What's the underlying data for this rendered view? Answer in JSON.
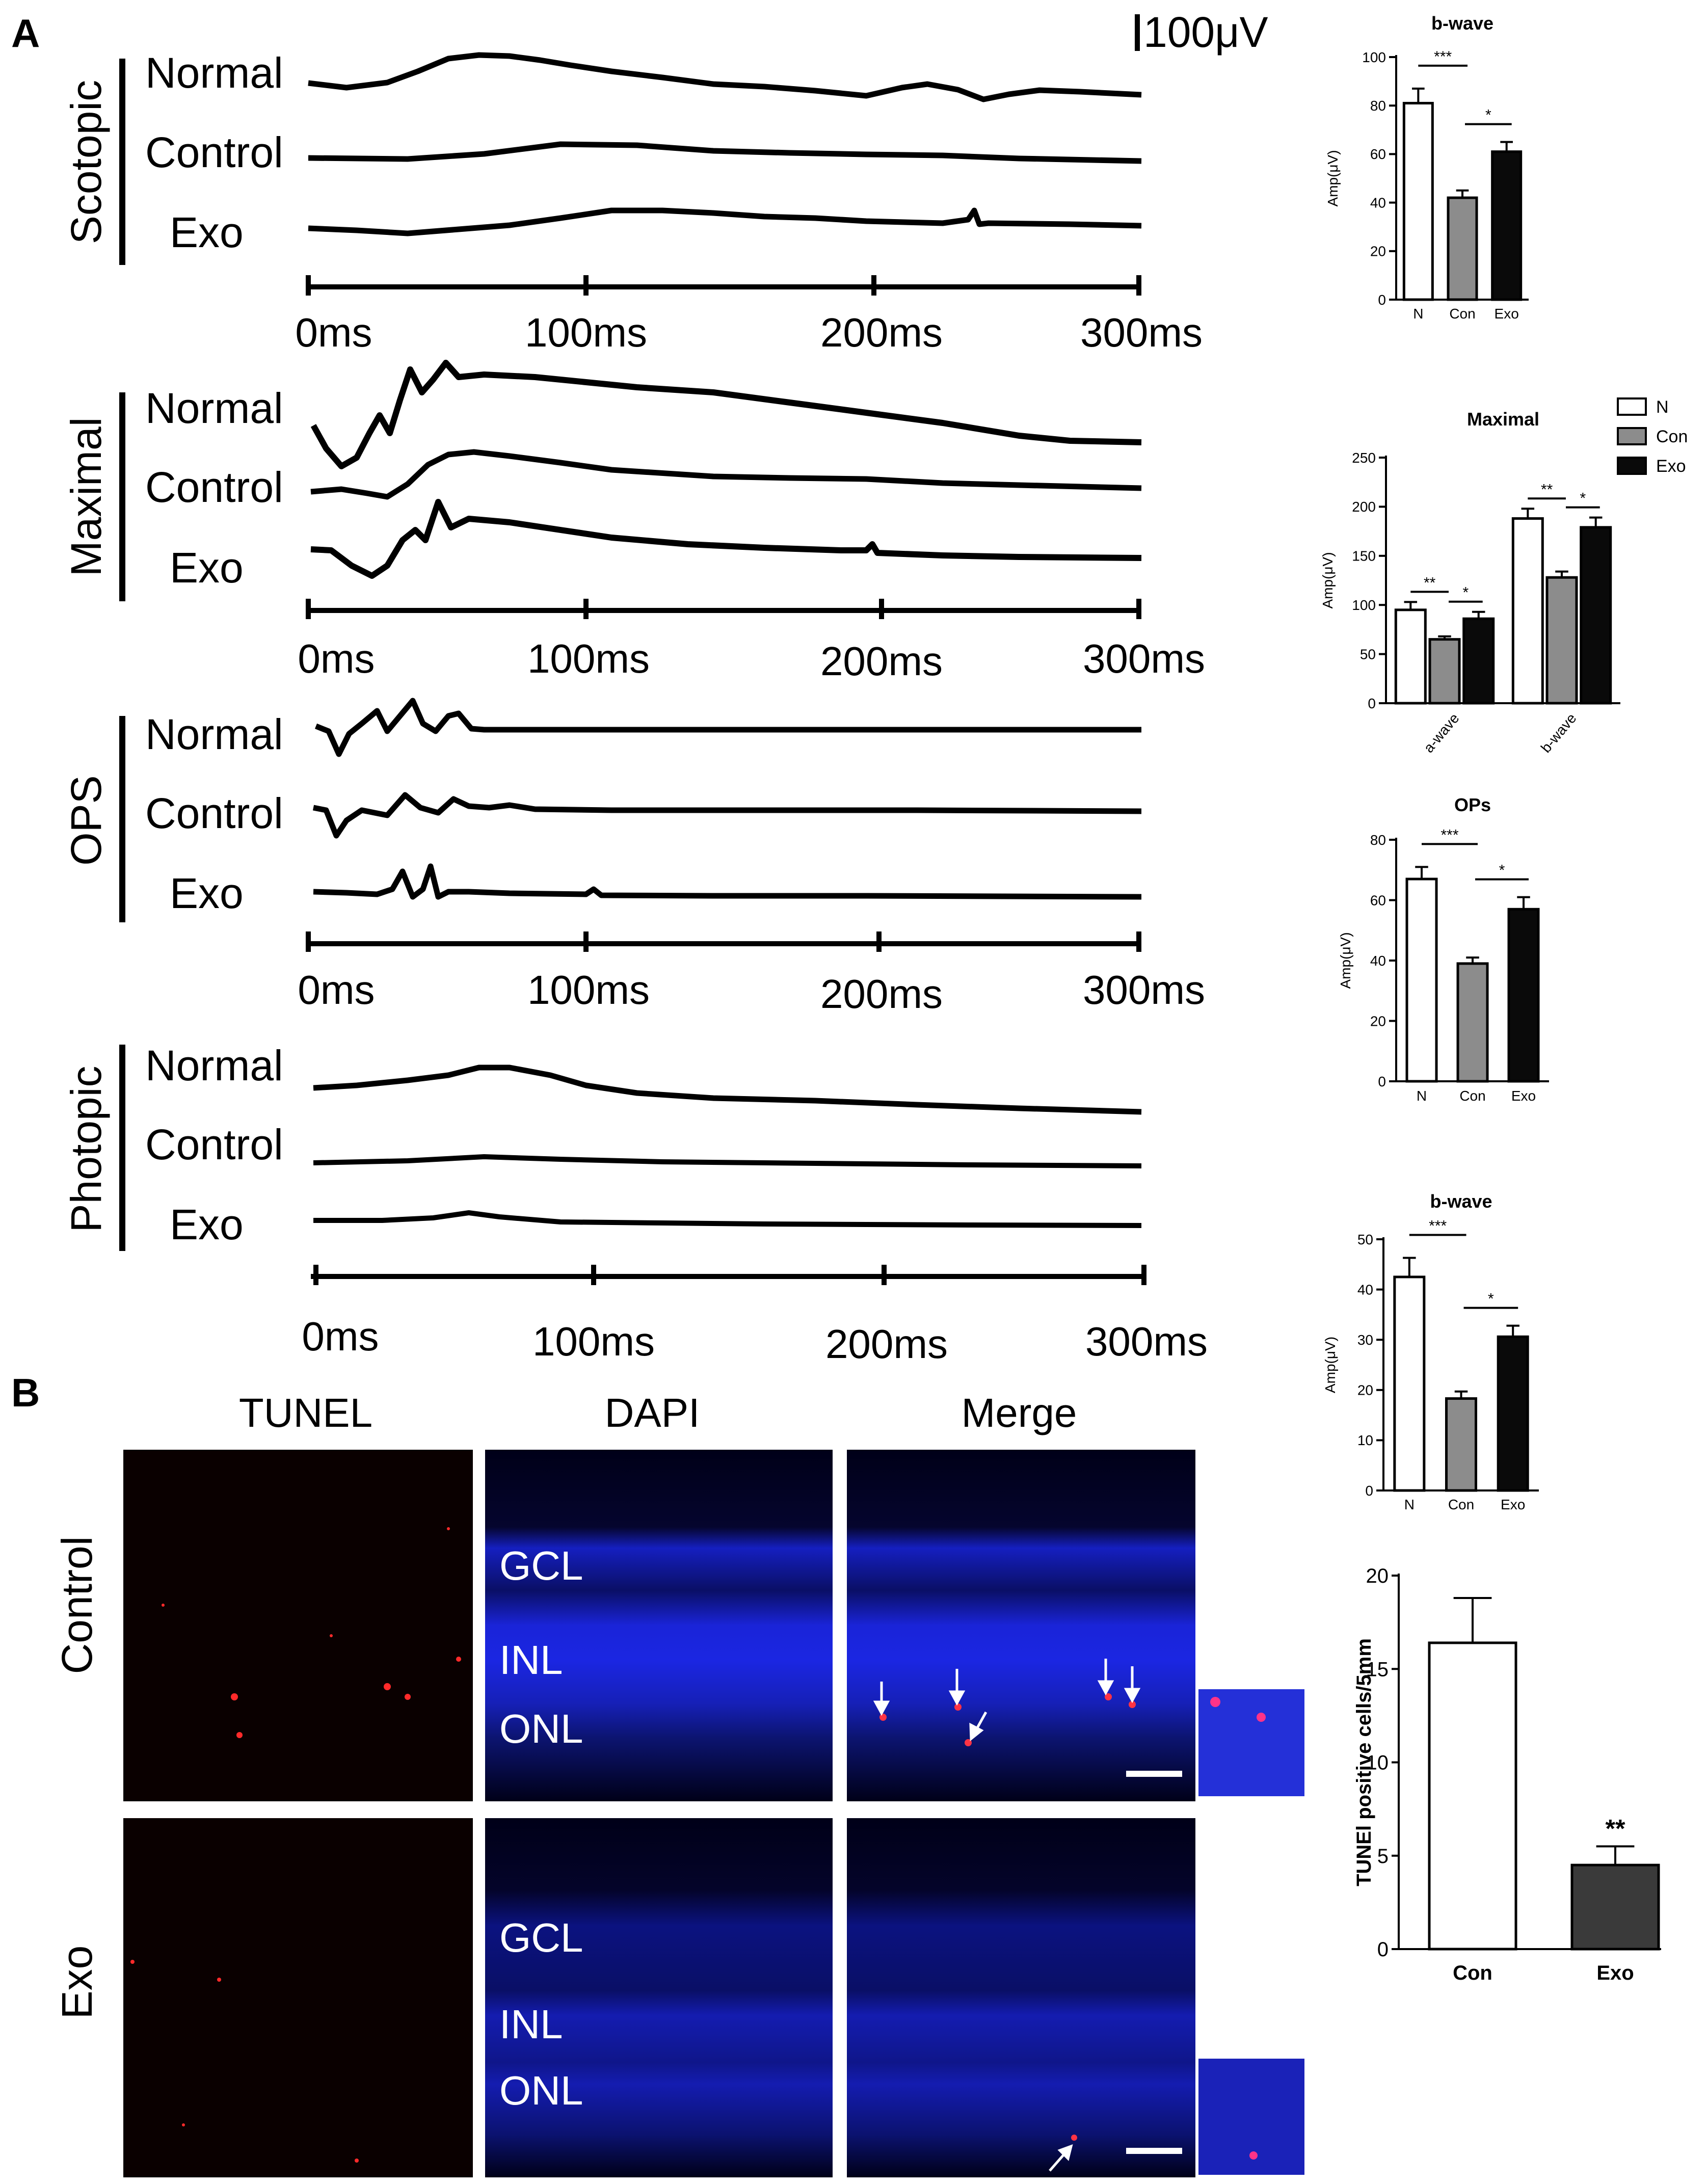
{
  "panel_a": {
    "label": "A",
    "scale_bar": "100μV",
    "groups": [
      {
        "name": "Scotopic",
        "traces": [
          "Normal",
          "Control",
          "Exo"
        ],
        "ticks": [
          "0ms",
          "100ms",
          "200ms",
          "300ms"
        ]
      },
      {
        "name": "Maximal",
        "traces": [
          "Normal",
          "Control",
          "Exo"
        ],
        "ticks": [
          "0ms",
          "100ms",
          "200ms",
          "300ms"
        ]
      },
      {
        "name": "OPS",
        "traces": [
          "Normal",
          "Control",
          "Exo"
        ],
        "ticks": [
          "0ms",
          "100ms",
          "200ms",
          "300ms"
        ]
      },
      {
        "name": "Photopic",
        "traces": [
          "Normal",
          "Control",
          "Exo"
        ],
        "ticks": [
          "0ms",
          "100ms",
          "200ms",
          "300ms"
        ]
      }
    ]
  },
  "panel_b": {
    "label": "B",
    "columns": [
      "TUNEL",
      "DAPI",
      "Merge"
    ],
    "rows": [
      "Control",
      "Exo"
    ],
    "layers": [
      "GCL",
      "INL",
      "ONL"
    ]
  },
  "colors": {
    "bar_N": "#ffffff",
    "bar_Con": "#8c8c8c",
    "bar_Exo": "#0a0a0a",
    "bar_Exo_tunel": "#3a3a3a",
    "dapi_blue": "#1a1fd8",
    "tunel_red": "#ff2a2a"
  },
  "chart_data": [
    {
      "type": "bar",
      "title": "b-wave",
      "ylabel": "Amp(μV)",
      "ylim": [
        0,
        100
      ],
      "yticks": [
        "0",
        "20",
        "40",
        "60",
        "80",
        "100"
      ],
      "categories": [
        "N",
        "Con",
        "Exo"
      ],
      "values": [
        81,
        42,
        61
      ],
      "errors": [
        6,
        3,
        4
      ],
      "significance": [
        "***",
        "*"
      ]
    },
    {
      "type": "bar",
      "title": "Maximal",
      "ylabel": "Amp(μV)",
      "ylim": [
        0,
        250
      ],
      "yticks": [
        "0",
        "50",
        "100",
        "150",
        "200",
        "250"
      ],
      "categories": [
        "a-wave",
        "b-wave"
      ],
      "legend": [
        "N",
        "Con",
        "Exo"
      ],
      "series": [
        {
          "name": "N",
          "values": [
            95,
            188
          ]
        },
        {
          "name": "Con",
          "values": [
            65,
            128
          ]
        },
        {
          "name": "Exo",
          "values": [
            86,
            179
          ]
        }
      ],
      "errors": [
        [
          8,
          10
        ],
        [
          3,
          6
        ],
        [
          7,
          10
        ]
      ],
      "significance": [
        [
          "**",
          "*"
        ],
        [
          "**",
          "*"
        ]
      ]
    },
    {
      "type": "bar",
      "title": "OPs",
      "ylabel": "Amp(μV)",
      "ylim": [
        0,
        80
      ],
      "yticks": [
        "0",
        "20",
        "40",
        "60",
        "80"
      ],
      "categories": [
        "N",
        "Con",
        "Exo"
      ],
      "values": [
        67,
        39,
        57
      ],
      "errors": [
        4,
        2,
        4
      ],
      "significance": [
        "***",
        "*"
      ]
    },
    {
      "type": "bar",
      "title": "b-wave",
      "ylabel": "Amp(μV)",
      "ylim": [
        0,
        50
      ],
      "yticks": [
        "0",
        "10",
        "20",
        "30",
        "40",
        "50"
      ],
      "categories": [
        "N",
        "Con",
        "Exo"
      ],
      "values": [
        42.5,
        18.3,
        30.6
      ],
      "errors": [
        3.8,
        1.4,
        2.2
      ],
      "significance": [
        "***",
        "*"
      ]
    },
    {
      "type": "bar",
      "ylabel": "TUNEl positive cells/5mm",
      "ylim": [
        0,
        20
      ],
      "yticks": [
        "0",
        "5",
        "10",
        "15",
        "20"
      ],
      "categories": [
        "Con",
        "Exo"
      ],
      "values": [
        16.4,
        4.5
      ],
      "errors": [
        2.4,
        1.0
      ],
      "significance": [
        "",
        "**"
      ]
    }
  ]
}
